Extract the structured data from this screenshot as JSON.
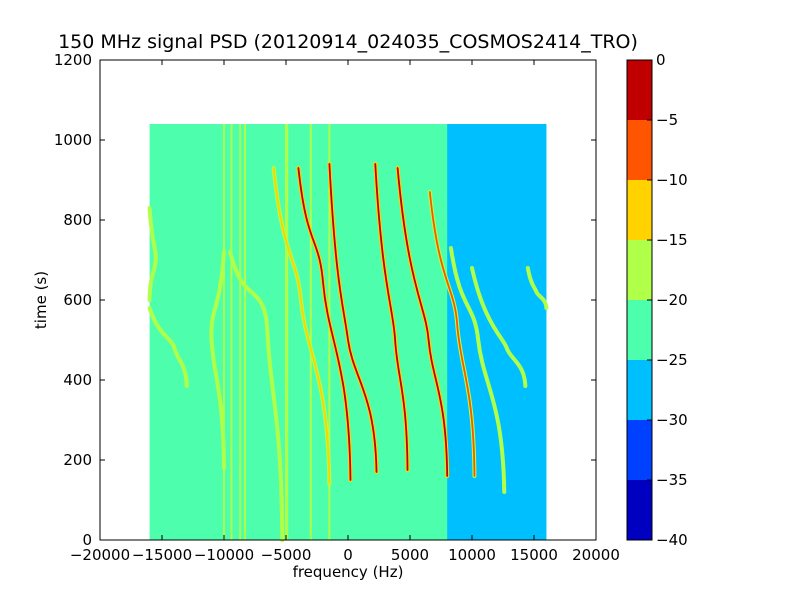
{
  "chart_data": {
    "type": "heatmap",
    "title": "150 MHz signal PSD (20120914_024035_COSMOS2414_TRO)",
    "xlabel": "frequency (Hz)",
    "ylabel": "time (s)",
    "xlim": [
      -20000,
      20000
    ],
    "ylim": [
      0,
      1200
    ],
    "xticks": [
      -20000,
      -15000,
      -10000,
      -5000,
      0,
      5000,
      10000,
      15000,
      20000
    ],
    "xtick_labels": [
      "−20000",
      "−15000",
      "−10000",
      "−5000",
      "0",
      "5000",
      "10000",
      "15000",
      "20000"
    ],
    "yticks": [
      0,
      200,
      400,
      600,
      800,
      1000,
      1200
    ],
    "ytick_labels": [
      "0",
      "200",
      "400",
      "600",
      "800",
      "1000",
      "1200"
    ],
    "data_extent": {
      "x": [
        -16000,
        16000
      ],
      "y": [
        0,
        1040
      ]
    },
    "background_level": -22.5,
    "low_region": {
      "x": [
        8000,
        16000
      ],
      "y": [
        0,
        1040
      ],
      "level": -27.5
    },
    "vertical_lines": [
      {
        "x": -10000,
        "level": -17.5
      },
      {
        "x": -9400,
        "level": -17.5
      },
      {
        "x": -8700,
        "level": -17.5
      },
      {
        "x": -8300,
        "level": -17.5
      },
      {
        "x": -5000,
        "level": -17.5
      },
      {
        "x": -4900,
        "level": -17.5
      },
      {
        "x": -3000,
        "level": -17.5
      },
      {
        "x": -1500,
        "level": -17.5
      }
    ],
    "tracks": [
      {
        "x_top": -16000,
        "y_top": 830,
        "x_mid": -15500,
        "y_mid": 700,
        "x_bottom": -16000,
        "y_bottom": 600,
        "level": -17.5
      },
      {
        "x_top": -16000,
        "y_top": 580,
        "x_mid": -14000,
        "y_mid": 480,
        "x_bottom": -13000,
        "y_bottom": 385,
        "level": -17.5
      },
      {
        "x_top": -10000,
        "y_top": 720,
        "x_mid": -11000,
        "y_mid": 500,
        "x_bottom": -10000,
        "y_bottom": 180,
        "level": -17.5
      },
      {
        "x_top": -9500,
        "y_top": 720,
        "x_mid": -6500,
        "y_mid": 520,
        "x_bottom": -5300,
        "y_bottom": 0,
        "level": -17.5
      },
      {
        "x_top": -6000,
        "y_top": 930,
        "x_mid": -3800,
        "y_mid": 600,
        "x_bottom": -1500,
        "y_bottom": 140,
        "level": -12.5
      },
      {
        "x_top": -4000,
        "y_top": 930,
        "x_mid": -2000,
        "y_mid": 640,
        "x_bottom": 200,
        "y_bottom": 150,
        "level": -2.5
      },
      {
        "x_top": -1500,
        "y_top": 940,
        "x_mid": 0,
        "y_mid": 500,
        "x_bottom": 2300,
        "y_bottom": 170,
        "level": -2.5
      },
      {
        "x_top": 2200,
        "y_top": 940,
        "x_mid": 3800,
        "y_mid": 500,
        "x_bottom": 4800,
        "y_bottom": 175,
        "level": -2.5
      },
      {
        "x_top": 4000,
        "y_top": 930,
        "x_mid": 6500,
        "y_mid": 500,
        "x_bottom": 8000,
        "y_bottom": 160,
        "level": -2.5
      },
      {
        "x_top": 6600,
        "y_top": 870,
        "x_mid": 8800,
        "y_mid": 540,
        "x_bottom": 10200,
        "y_bottom": 160,
        "level": -7.5
      },
      {
        "x_top": 8300,
        "y_top": 730,
        "x_mid": 10500,
        "y_mid": 500,
        "x_bottom": 12600,
        "y_bottom": 120,
        "level": -17.5
      },
      {
        "x_top": 10000,
        "y_top": 680,
        "x_mid": 12800,
        "y_mid": 480,
        "x_bottom": 14300,
        "y_bottom": 385,
        "level": -17.5
      },
      {
        "x_top": 14500,
        "y_top": 680,
        "x_mid": 15200,
        "y_mid": 620,
        "x_bottom": 16000,
        "y_bottom": 580,
        "level": -17.5
      }
    ],
    "colorbar": {
      "min": -40,
      "max": 0,
      "ticks": [
        0,
        -5,
        -10,
        -15,
        -20,
        -25,
        -30,
        -35,
        -40
      ],
      "tick_labels": [
        "0",
        "−5",
        "−10",
        "−15",
        "−20",
        "−25",
        "−30",
        "−35",
        "−40"
      ],
      "bands": [
        {
          "from": -40,
          "to": -35,
          "color": "#0000c0"
        },
        {
          "from": -35,
          "to": -30,
          "color": "#0040ff"
        },
        {
          "from": -30,
          "to": -25,
          "color": "#00bfff"
        },
        {
          "from": -25,
          "to": -20,
          "color": "#4dffad"
        },
        {
          "from": -20,
          "to": -15,
          "color": "#b0ff48"
        },
        {
          "from": -15,
          "to": -10,
          "color": "#ffd200"
        },
        {
          "from": -10,
          "to": -5,
          "color": "#ff5500"
        },
        {
          "from": -5,
          "to": 0,
          "color": "#c00000"
        }
      ]
    }
  }
}
